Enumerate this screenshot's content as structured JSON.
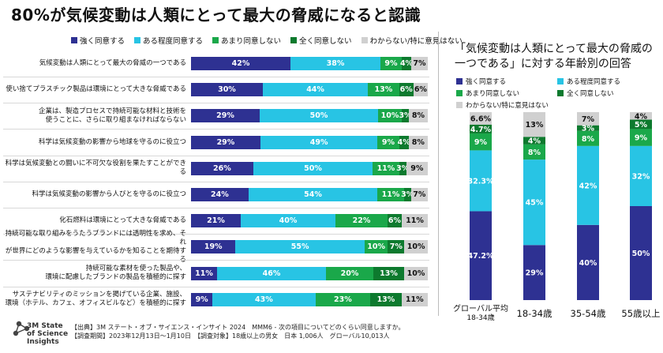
{
  "title": "80%が気候変動は人類にとって最大の脅威になると認識",
  "colors": {
    "strongly_agree": "#2e3192",
    "somewhat_agree": "#28c4e4",
    "somewhat_disagree": "#1aa84a",
    "strongly_disagree": "#0d7a2e",
    "dont_know": "#d0d0d0"
  },
  "legend": [
    "強く同意する",
    "ある程度同意する",
    "あまり同意しない",
    "全く同意しない",
    "わからない/特に意見はない"
  ],
  "chart_data": [
    {
      "type": "bar",
      "orientation": "horizontal-stacked",
      "unit": "%",
      "series_names": [
        "強く同意する",
        "ある程度同意する",
        "あまり同意しない",
        "全く同意しない",
        "わからない/特に意見はない"
      ],
      "categories": [
        [
          "気候変動は人類にとって最大の脅威の一つである"
        ],
        [
          "使い捨てプラスチック製品は環境にとって大きな脅威である"
        ],
        [
          "企業は、製造プロセスで持続可能な材料と技術を",
          "使うことに、さらに取り組まなければならない"
        ],
        [
          "科学は気候変動の影響から地球を守るのに役立つ"
        ],
        [
          "科学は気候変動との闘いに不可欠な役割を果たすことができる"
        ],
        [
          "科学は気候変動の影響から人びとを守るのに役立つ"
        ],
        [
          "化石燃料は環境にとって大きな脅威である"
        ],
        [
          "持続可能な取り組みをうたうブランドには透明性を求め、それ",
          "が世界にどのような影響を与えているかを知ることを期待する"
        ],
        [
          "持続可能な素材を使った製品や、",
          "環境に配慮したブランドの製品を積極的に探す"
        ],
        [
          "サステナビリティのミッションを掲げている企業、施設、",
          "環境（ホテル、カフェ、オフィスビルなど）を積極的に探す"
        ]
      ],
      "values": [
        [
          42,
          38,
          9,
          4,
          7
        ],
        [
          30,
          44,
          13,
          6,
          6
        ],
        [
          29,
          50,
          10,
          3,
          8
        ],
        [
          29,
          49,
          9,
          4,
          8
        ],
        [
          26,
          50,
          11,
          3,
          9
        ],
        [
          24,
          54,
          11,
          3,
          7
        ],
        [
          21,
          40,
          22,
          6,
          11
        ],
        [
          19,
          55,
          10,
          7,
          10
        ],
        [
          11,
          46,
          20,
          13,
          10
        ],
        [
          9,
          43,
          23,
          13,
          11
        ]
      ],
      "labels": [
        [
          "42%",
          "38%",
          "9%",
          "4%",
          "7%"
        ],
        [
          "30%",
          "44%",
          "13%",
          "6%",
          "6%"
        ],
        [
          "29%",
          "50%",
          "10%",
          "3%",
          "8%"
        ],
        [
          "29%",
          "49%",
          "9%",
          "4%",
          "8%"
        ],
        [
          "26%",
          "50%",
          "11%",
          "3%",
          "9%"
        ],
        [
          "24%",
          "54%",
          "11%",
          "3%",
          "7%"
        ],
        [
          "21%",
          "40%",
          "22%",
          "6%",
          "11%"
        ],
        [
          "19%",
          "55%",
          "10%",
          "7%",
          "10%"
        ],
        [
          "11%",
          "46%",
          "20%",
          "13%",
          "10%"
        ],
        [
          "9%",
          "43%",
          "23%",
          "13%",
          "11%"
        ]
      ]
    },
    {
      "type": "bar",
      "orientation": "vertical-stacked",
      "title": "「気候変動は人類にとって最大の脅威の一つである」に対する年齢別の回答",
      "unit": "%",
      "series_names": [
        "強く同意する",
        "ある程度同意する",
        "あまり同意しない",
        "全く同意しない",
        "わからない/特に意見はない"
      ],
      "categories": [
        [
          "グローバル平均",
          "18-34歳"
        ],
        [
          "18-34歳"
        ],
        [
          "35-54歳"
        ],
        [
          "55歳以上"
        ]
      ],
      "values": [
        [
          47.2,
          32.3,
          9,
          4.7,
          6.6
        ],
        [
          29,
          45,
          8,
          4,
          13
        ],
        [
          40,
          42,
          8,
          3,
          7
        ],
        [
          50,
          32,
          9,
          5,
          4
        ]
      ],
      "labels": [
        [
          "47.2%",
          "32.3%",
          "9%",
          "4.7%",
          "6.6%"
        ],
        [
          "29%",
          "45%",
          "8%",
          "4%",
          "13%"
        ],
        [
          "40%",
          "42%",
          "8%",
          "3%",
          "7%"
        ],
        [
          "50%",
          "32%",
          "9%",
          "5%",
          "4%"
        ]
      ]
    }
  ],
  "logo_text": [
    "3M State",
    "of Science",
    "Insights"
  ],
  "footer": [
    "【出典】3M ステート・オブ・サイエンス・インサイト 2024　MMM6 - 次の項目についてどのくらい同意しますか。",
    "【調査期間】2023年12月13日～1月10日　【調査対象】18歳以上の男女　日本 1,006人　グローバル10,013人"
  ]
}
